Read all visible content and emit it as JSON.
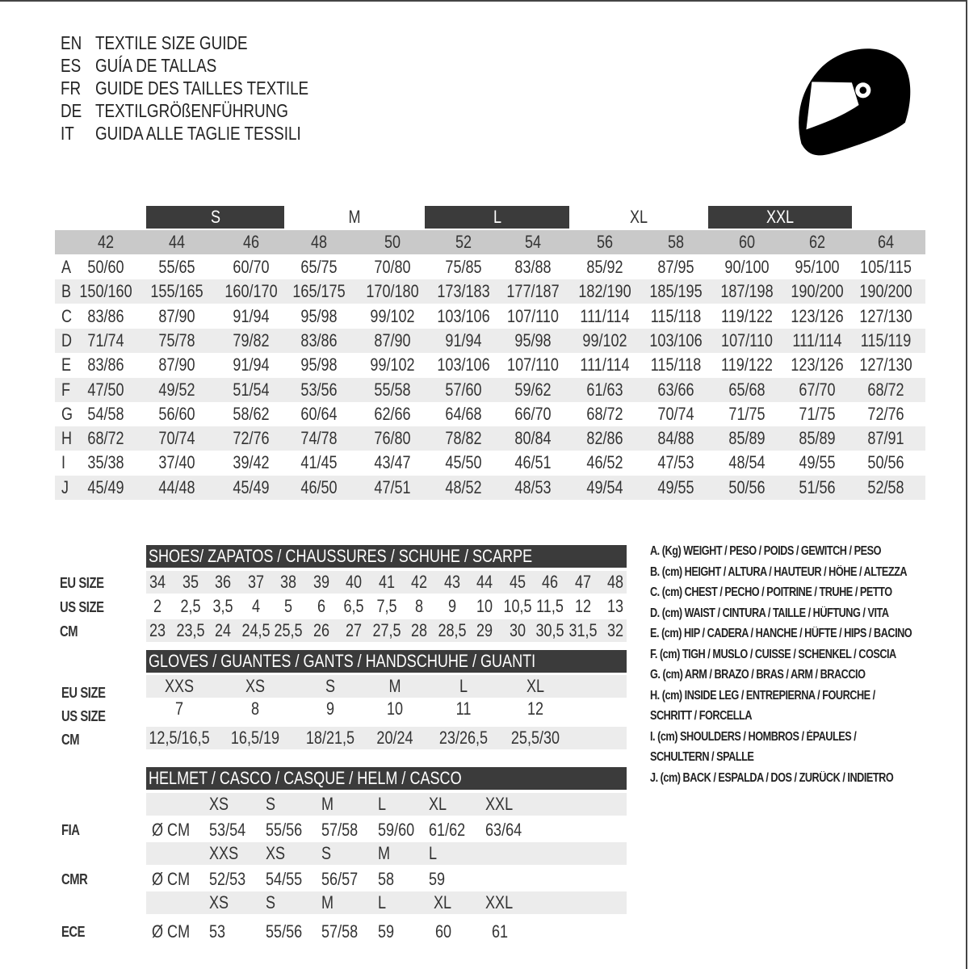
{
  "titles": [
    {
      "code": "EN",
      "text": "TEXTILE SIZE GUIDE"
    },
    {
      "code": "ES",
      "text": "GUÍA DE TALLAS"
    },
    {
      "code": "FR",
      "text": "GUIDE DES TAILLES TEXTILE"
    },
    {
      "code": "DE",
      "text": "TEXTILGRÖßENFÜHRUNG"
    },
    {
      "code": "IT",
      "text": "GUIDA ALLE TAGLIE TESSILI"
    }
  ],
  "logo_icon": "helmet-icon",
  "colors": {
    "dark_bar": "#3b3b3b",
    "header_gray": "#c9c9c9",
    "row_stripe": "#ececec"
  },
  "textile": {
    "size_bands": [
      {
        "label": "S",
        "dark": true
      },
      {
        "label": "M",
        "dark": false
      },
      {
        "label": "L",
        "dark": true
      },
      {
        "label": "XL",
        "dark": false
      },
      {
        "label": "XXL",
        "dark": true
      }
    ],
    "sizes": [
      "42",
      "44",
      "46",
      "48",
      "50",
      "52",
      "54",
      "56",
      "58",
      "60",
      "62",
      "64"
    ],
    "rows": [
      {
        "key": "A",
        "values": [
          "50/60",
          "55/65",
          "60/70",
          "65/75",
          "70/80",
          "75/85",
          "83/88",
          "85/92",
          "87/95",
          "90/100",
          "95/100",
          "105/115"
        ]
      },
      {
        "key": "B",
        "values": [
          "150/160",
          "155/165",
          "160/170",
          "165/175",
          "170/180",
          "173/183",
          "177/187",
          "182/190",
          "185/195",
          "187/198",
          "190/200",
          "190/200"
        ]
      },
      {
        "key": "C",
        "values": [
          "83/86",
          "87/90",
          "91/94",
          "95/98",
          "99/102",
          "103/106",
          "107/110",
          "111/114",
          "115/118",
          "119/122",
          "123/126",
          "127/130"
        ]
      },
      {
        "key": "D",
        "values": [
          "71/74",
          "75/78",
          "79/82",
          "83/86",
          "87/90",
          "91/94",
          "95/98",
          "99/102",
          "103/106",
          "107/110",
          "111/114",
          "115/119"
        ]
      },
      {
        "key": "E",
        "values": [
          "83/86",
          "87/90",
          "91/94",
          "95/98",
          "99/102",
          "103/106",
          "107/110",
          "111/114",
          "115/118",
          "119/122",
          "123/126",
          "127/130"
        ]
      },
      {
        "key": "F",
        "values": [
          "47/50",
          "49/52",
          "51/54",
          "53/56",
          "55/58",
          "57/60",
          "59/62",
          "61/63",
          "63/66",
          "65/68",
          "67/70",
          "68/72"
        ]
      },
      {
        "key": "G",
        "values": [
          "54/58",
          "56/60",
          "58/62",
          "60/64",
          "62/66",
          "64/68",
          "66/70",
          "68/72",
          "70/74",
          "71/75",
          "71/75",
          "72/76"
        ]
      },
      {
        "key": "H",
        "values": [
          "68/72",
          "70/74",
          "72/76",
          "74/78",
          "76/80",
          "78/82",
          "80/84",
          "82/86",
          "84/88",
          "85/89",
          "85/89",
          "87/91"
        ]
      },
      {
        "key": "I",
        "values": [
          "35/38",
          "37/40",
          "39/42",
          "41/45",
          "43/47",
          "45/50",
          "46/51",
          "46/52",
          "47/53",
          "48/54",
          "49/55",
          "50/56"
        ]
      },
      {
        "key": "J",
        "values": [
          "45/49",
          "44/48",
          "45/49",
          "46/50",
          "47/51",
          "48/52",
          "48/53",
          "49/54",
          "49/55",
          "50/56",
          "51/56",
          "52/58"
        ]
      }
    ]
  },
  "shoes": {
    "title": "SHOES/ ZAPATOS / CHAUSSURES / SCHUHE / SCARPE",
    "rows": [
      {
        "label": "EU SIZE",
        "values": [
          "34",
          "35",
          "36",
          "37",
          "38",
          "39",
          "40",
          "41",
          "42",
          "43",
          "44",
          "45",
          "46",
          "47",
          "48"
        ]
      },
      {
        "label": "US SIZE",
        "values": [
          "2",
          "2,5",
          "3,5",
          "4",
          "5",
          "6",
          "6,5",
          "7,5",
          "8",
          "9",
          "10",
          "10,5",
          "11,5",
          "12",
          "13"
        ]
      },
      {
        "label": "CM",
        "values": [
          "23",
          "23,5",
          "24",
          "24,5",
          "25,5",
          "26",
          "27",
          "27,5",
          "28",
          "28,5",
          "29",
          "30",
          "30,5",
          "31,5",
          "32"
        ]
      }
    ]
  },
  "gloves": {
    "title": "GLOVES / GUANTES / GANTS / HANDSCHUHE / GUANTI",
    "rows": [
      {
        "label": "EU SIZE",
        "values": [
          "XXS",
          "XS",
          "S",
          "M",
          "L",
          "XL"
        ]
      },
      {
        "label": "US SIZE",
        "values": [
          "7",
          "8",
          "9",
          "10",
          "11",
          "12"
        ]
      },
      {
        "label": "CM",
        "values": [
          "12,5/16,5",
          "16,5/19",
          "18/21,5",
          "20/24",
          "23/26,5",
          "25,5/30"
        ]
      }
    ]
  },
  "helmet": {
    "title": "HELMET / CASCO / CASQUE / HELM / CASCO",
    "unit": "Ø CM",
    "standards": [
      {
        "name": "FIA",
        "sizes": [
          "XS",
          "S",
          "M",
          "L",
          "XL",
          "XXL"
        ],
        "values": [
          "53/54",
          "55/56",
          "57/58",
          "59/60",
          "61/62",
          "63/64"
        ]
      },
      {
        "name": "CMR",
        "sizes": [
          "XXS",
          "XS",
          "S",
          "M",
          "L"
        ],
        "values": [
          "52/53",
          "54/55",
          "56/57",
          "58",
          "59"
        ]
      },
      {
        "name": "ECE",
        "sizes": [
          "XS",
          "S",
          "M",
          "L",
          "XL",
          "XXL"
        ],
        "values": [
          "53",
          "55/56",
          "57/58",
          "59",
          "60",
          "61"
        ]
      }
    ]
  },
  "legend": [
    "A. (Kg) WEIGHT / PESO / POIDS / GEWITCH / PESO",
    "B. (cm) HEIGHT / ALTURA / HAUTEUR / HÖHE / ALTEZZA",
    "C. (cm) CHEST / PECHO / POITRINE / TRUHE / PETTO",
    "D. (cm) WAIST / CINTURA / TAILLE / HÜFTUNG / VITA",
    "E. (cm) HIP / CADERA / HANCHE / HÜFTE / HIPS /  BACINO",
    "F.  (cm) TIGH / MUSLO / CUISSE / SCHENKEL / COSCIA",
    "G. (cm) ARM  / BRAZO / BRAS / ARM / BRACCIO",
    "H. (cm) INSIDE LEG / ENTREPIERNA / FOURCHE /",
    "SCHRITT / FORCELLA",
    "I.  (cm) SHOULDERS / HOMBROS / ÉPAULES /",
    "SCHULTERN / SPALLE",
    "J. (cm) BACK / ESPALDA / DOS / ZURÜCK / INDIETRO"
  ]
}
